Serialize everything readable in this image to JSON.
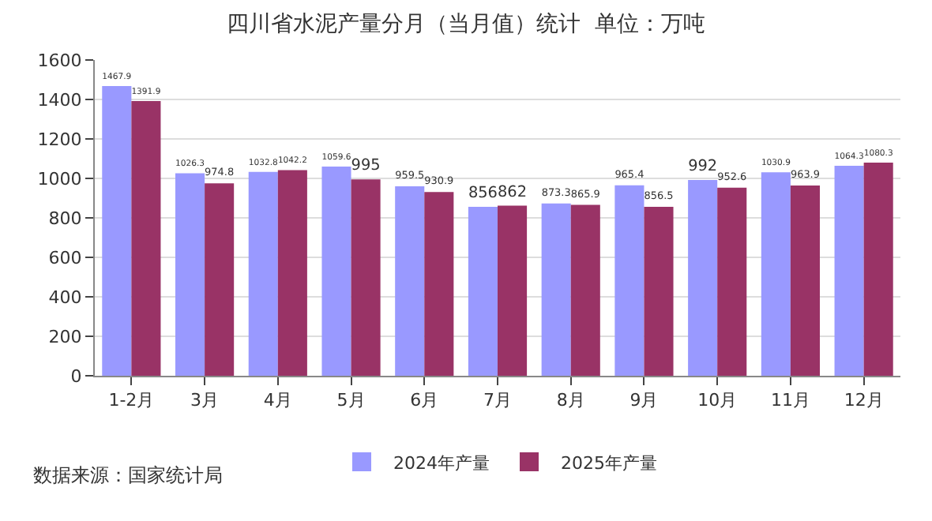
{
  "chart_data": {
    "type": "bar",
    "title": "四川省水泥产量分月（当月值）统计  单位：万吨",
    "categories": [
      "1-2月",
      "3月",
      "4月",
      "5月",
      "6月",
      "7月",
      "8月",
      "9月",
      "10月",
      "11月",
      "12月"
    ],
    "series": [
      {
        "name": "2024年产量",
        "color": "#9999ff",
        "values": [
          1467.9,
          1026.3,
          1032.8,
          1059.6,
          959.5,
          856,
          873.3,
          965.4,
          992,
          1030.9,
          1064.3
        ]
      },
      {
        "name": "2025年产量",
        "color": "#993366",
        "values": [
          1391.9,
          974.8,
          1042.2,
          995,
          930.9,
          862,
          865.9,
          856.5,
          952.6,
          963.9,
          1080.3
        ]
      }
    ],
    "ylim": [
      0,
      1600
    ],
    "yticks": [
      0,
      200,
      400,
      600,
      800,
      1000,
      1200,
      1400,
      1600
    ],
    "grid": "y",
    "legend": "bottom",
    "data_labels": true,
    "annotations": [
      "数据来源：国家统计局"
    ]
  }
}
